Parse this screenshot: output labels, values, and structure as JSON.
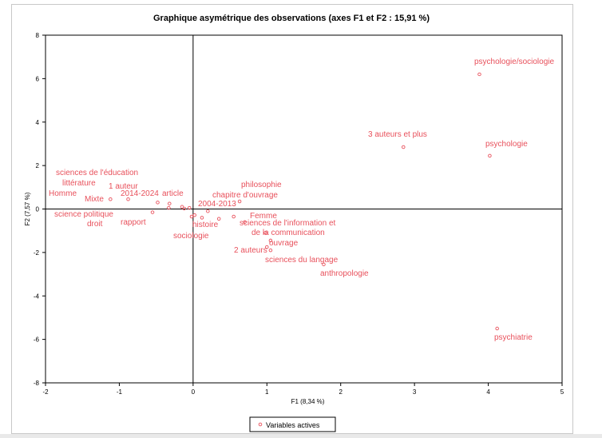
{
  "chart_data": {
    "type": "scatter",
    "title": "Graphique asymétrique des observations (axes F1 et F2 : 15,91 %)",
    "xlabel": "F1 (8,34 %)",
    "ylabel": "F2 (7,57 %)",
    "xlim": [
      -2,
      5
    ],
    "ylim": [
      -8,
      8
    ],
    "x_ticks": [
      "-2",
      "-1",
      "0",
      "1",
      "2",
      "3",
      "4",
      "5"
    ],
    "y_ticks": [
      "-8",
      "-6",
      "-4",
      "-2",
      "0",
      "2",
      "4",
      "6",
      "8"
    ],
    "grid": false,
    "legend_position": "bottom",
    "series_color": "#e8505b",
    "series": [
      {
        "name": "Variables actives",
        "points": [
          {
            "label": "psychologie/sociologie",
            "x": 3.88,
            "y": 6.2
          },
          {
            "label": "psychologie",
            "x": 4.02,
            "y": 2.45
          },
          {
            "label": "3 auteurs et plus",
            "x": 2.85,
            "y": 2.85
          },
          {
            "label": "psychiatrie",
            "x": 4.12,
            "y": -5.5
          },
          {
            "label": "anthropologie",
            "x": 1.77,
            "y": -2.55
          },
          {
            "label": "sciences du langage",
            "x": 1.05,
            "y": -1.9
          },
          {
            "label": "ouvrage",
            "x": 1.05,
            "y": -1.45
          },
          {
            "label": "2 auteurs",
            "x": 1.0,
            "y": -1.75
          },
          {
            "label": "de la communication",
            "x": 0.98,
            "y": -1.1
          },
          {
            "label": "sciences de l'information et",
            "x": 0.7,
            "y": -0.6
          },
          {
            "label": "Femme",
            "x": 0.55,
            "y": -0.35
          },
          {
            "label": "philosophie",
            "x": 0.63,
            "y": 0.35
          },
          {
            "label": "chapitre d'ouvrage",
            "x": 0.35,
            "y": -0.45
          },
          {
            "label": "2004-2013",
            "x": 0.2,
            "y": -0.1
          },
          {
            "label": "histoire",
            "x": 0.12,
            "y": -0.4
          },
          {
            "label": "sociologie",
            "x": -0.02,
            "y": -0.35
          },
          {
            "label": "article",
            "x": -0.32,
            "y": 0.25
          },
          {
            "label": "2014-2024",
            "x": -0.48,
            "y": 0.3
          },
          {
            "label": "1 auteur",
            "x": -0.88,
            "y": 0.45
          },
          {
            "label": "rapport",
            "x": -0.55,
            "y": -0.15
          },
          {
            "label": "Mixte",
            "x": -1.12,
            "y": 0.45
          },
          {
            "label": "sciences de l'éducation",
            "x": -0.33,
            "y": 0.05
          },
          {
            "label": "littérature",
            "x": -0.15,
            "y": 0.1
          },
          {
            "label": "Homme",
            "x": -0.12,
            "y": 0.02
          },
          {
            "label": "science politique",
            "x": 0.02,
            "y": -0.28
          },
          {
            "label": "droit",
            "x": -0.05,
            "y": 0.05
          }
        ]
      }
    ]
  }
}
